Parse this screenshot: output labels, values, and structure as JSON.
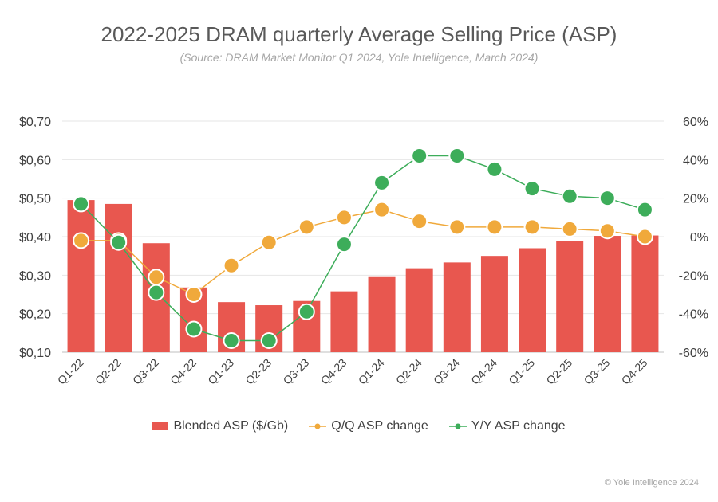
{
  "chart_data": {
    "type": "bar",
    "title": "2022-2025 DRAM quarterly Average Selling Price (ASP)",
    "subtitle": "(Source: DRAM Market Monitor Q1 2024, Yole Intelligence, March 2024)",
    "categories": [
      "Q1-22",
      "Q2-22",
      "Q3-22",
      "Q4-22",
      "Q1-23",
      "Q2-23",
      "Q3-23",
      "Q4-23",
      "Q1-24",
      "Q2-24",
      "Q3-24",
      "Q4-24",
      "Q1-25",
      "Q2-25",
      "Q3-25",
      "Q4-25"
    ],
    "y_left": {
      "ticks": [
        "$0,10",
        "$0,20",
        "$0,30",
        "$0,40",
        "$0,50",
        "$0,60",
        "$0,70"
      ],
      "ylim": [
        0.1,
        0.7
      ]
    },
    "y_right": {
      "ticks": [
        "-60%",
        "-40%",
        "-20%",
        "0%",
        "20%",
        "40%",
        "60%"
      ],
      "ylim": [
        -60,
        60
      ]
    },
    "grid": "horizontal",
    "legend": "bottom-center",
    "series": [
      {
        "name": "Blended ASP ($/Gb)",
        "kind": "bar",
        "axis": "left",
        "color": "#e8574f",
        "values": [
          0.495,
          0.485,
          0.383,
          0.268,
          0.23,
          0.222,
          0.233,
          0.258,
          0.295,
          0.318,
          0.333,
          0.35,
          0.37,
          0.388,
          0.402,
          0.403
        ]
      },
      {
        "name": "Q/Q ASP change",
        "kind": "line",
        "axis": "right",
        "color": "#f0a93b",
        "values": [
          -2,
          -2,
          -21,
          -30,
          -15,
          -3,
          5,
          10,
          14,
          8,
          5,
          5,
          5,
          4,
          3,
          0
        ]
      },
      {
        "name": "Y/Y ASP change",
        "kind": "line",
        "axis": "right",
        "color": "#3dad5a",
        "values": [
          17,
          -3,
          -29,
          -48,
          -54,
          -54,
          -39,
          -4,
          28,
          42,
          42,
          35,
          25,
          21,
          20,
          14
        ]
      }
    ]
  },
  "legend_labels": [
    "Blended ASP ($/Gb)",
    "Q/Q ASP change",
    "Y/Y ASP change"
  ],
  "copyright": "© Yole Intelligence 2024"
}
